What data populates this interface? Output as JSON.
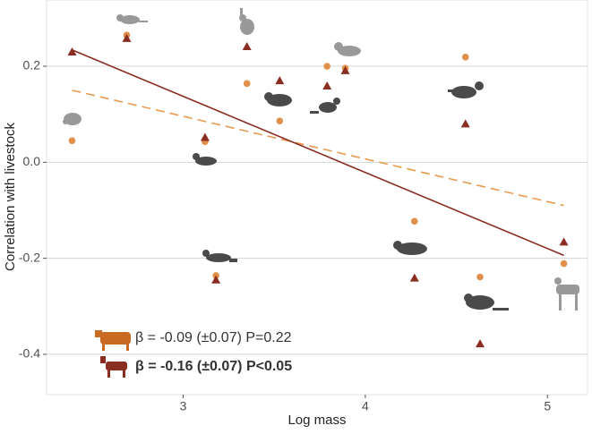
{
  "chart_data": {
    "type": "scatter",
    "x_label": "Log mass",
    "y_label": "Correlation with livestock",
    "xlim": [
      2.25,
      5.22
    ],
    "ylim": [
      -0.484,
      0.338
    ],
    "xticks": [
      3,
      4,
      5
    ],
    "yticks": [
      -0.4,
      -0.2,
      {
        "value": 0,
        "label": "0.0"
      },
      0.2
    ],
    "grid": true,
    "series": [
      {
        "color": "#e0904a",
        "marker": "circle",
        "x": [
          2.39,
          2.69,
          3.12,
          3.18,
          3.35,
          3.53,
          3.79,
          3.89,
          4.27,
          4.55,
          4.63,
          5.09
        ],
        "values": [
          0.045,
          0.265,
          0.043,
          -0.236,
          0.164,
          0.086,
          0.2,
          0.196,
          -0.123,
          0.219,
          -0.239,
          -0.211
        ]
      },
      {
        "color": "#8b2e22",
        "marker": "triangle",
        "x": [
          2.39,
          2.69,
          3.12,
          3.18,
          3.35,
          3.53,
          3.79,
          3.89,
          4.27,
          4.55,
          4.63,
          5.09
        ],
        "values": [
          0.23,
          0.258,
          0.052,
          -0.245,
          0.241,
          0.17,
          0.159,
          0.191,
          -0.241,
          0.08,
          -0.378,
          -0.166
        ]
      }
    ],
    "trend_lines": [
      {
        "color": "#e89a50",
        "dashed": true,
        "x": [
          2.39,
          5.09
        ],
        "values": [
          0.15,
          -0.09
        ]
      },
      {
        "color": "#8b2e22",
        "dashed": false,
        "x": [
          2.39,
          5.09
        ],
        "values": [
          0.234,
          -0.194
        ]
      }
    ],
    "annotations": [
      {
        "text": "β = -0.09 (±0.07)  P=0.22",
        "bold": false
      },
      {
        "text": "β = -0.16 (±0.07)  P<0.05",
        "bold": true
      }
    ]
  }
}
